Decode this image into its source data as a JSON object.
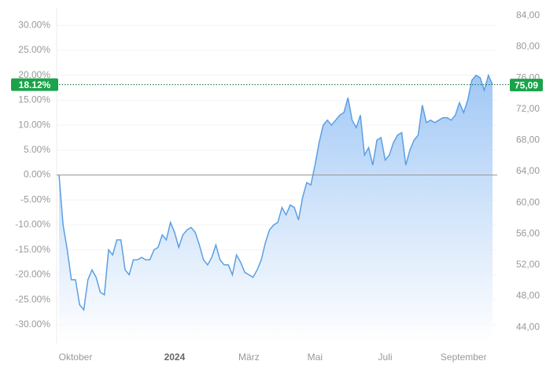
{
  "chart_data": {
    "type": "area",
    "categories": [
      null,
      null,
      null,
      null,
      "Oktober",
      null,
      null,
      null,
      null,
      null,
      null,
      null,
      null,
      null,
      null,
      null,
      null,
      null,
      null,
      null,
      null,
      null,
      null,
      null,
      null,
      null,
      null,
      null,
      "2024",
      null,
      null,
      null,
      null,
      null,
      null,
      null,
      null,
      null,
      null,
      null,
      null,
      null,
      null,
      null,
      null,
      null,
      "März",
      null,
      null,
      null,
      null,
      null,
      null,
      null,
      null,
      null,
      null,
      null,
      null,
      null,
      null,
      null,
      "Mai",
      null,
      null,
      null,
      null,
      null,
      null,
      null,
      null,
      null,
      null,
      null,
      null,
      null,
      null,
      null,
      null,
      "Juli",
      null,
      null,
      null,
      null,
      null,
      null,
      null,
      null,
      null,
      null,
      null,
      null,
      null,
      null,
      null,
      null,
      null,
      null,
      "September",
      null,
      null,
      null,
      null,
      null,
      null,
      null
    ],
    "values": [
      0,
      -10,
      -15,
      -21,
      -21,
      -26,
      -27,
      -21,
      -19,
      -20.5,
      -23.5,
      -24,
      -15,
      -16,
      -13,
      -13,
      -19,
      -20,
      -17,
      -17,
      -16.5,
      -17,
      -17,
      -15,
      -14.5,
      -12,
      -13,
      -9.5,
      -11.5,
      -14.5,
      -12,
      -11,
      -10.5,
      -11.5,
      -14,
      -17,
      -18,
      -16.5,
      -14,
      -17,
      -18,
      -18,
      -20,
      -16,
      -17.5,
      -19.5,
      -20,
      -20.5,
      -19,
      -17,
      -13.5,
      -11,
      -10,
      -9.5,
      -6.5,
      -8,
      -6,
      -6.5,
      -9,
      -4.5,
      -1.5,
      -2,
      2,
      6.5,
      10,
      11,
      10,
      11,
      12,
      12.5,
      15.5,
      11,
      9.5,
      12,
      4,
      5.5,
      2,
      7,
      7.5,
      3,
      4,
      6.5,
      8,
      8.5,
      2,
      5,
      7,
      8,
      14,
      10.5,
      11,
      10.5,
      11,
      11.5,
      11.5,
      11,
      12,
      14.5,
      12.5,
      15,
      19,
      20,
      19.5,
      17,
      20,
      18.12
    ],
    "color": "#5b9fe3",
    "ylim": [
      -33.8,
      33.5
    ],
    "yticks": [
      {
        "value": 30,
        "label": "30.00%"
      },
      {
        "value": 25,
        "label": "25.00%"
      },
      {
        "value": 20,
        "label": "20.00%"
      },
      {
        "value": 15,
        "label": "15.00%"
      },
      {
        "value": 10,
        "label": "10.00%"
      },
      {
        "value": 5,
        "label": "5.00%"
      },
      {
        "value": 0,
        "label": "0.00%"
      },
      {
        "value": -5,
        "label": "-5.00%"
      },
      {
        "value": -10,
        "label": "-10.00%"
      },
      {
        "value": -15,
        "label": "-15.00%"
      },
      {
        "value": -20,
        "label": "-20.00%"
      },
      {
        "value": -25,
        "label": "-25.00%"
      },
      {
        "value": -30,
        "label": "-30.00%"
      }
    ],
    "y2lim": [
      41.9,
      85.0
    ],
    "y2ticks": [
      {
        "value": 84,
        "label": "84,00"
      },
      {
        "value": 80,
        "label": "80,00"
      },
      {
        "value": 76,
        "label": "76,00"
      },
      {
        "value": 72,
        "label": "72,00"
      },
      {
        "value": 68,
        "label": "68,00"
      },
      {
        "value": 64,
        "label": "64,00"
      },
      {
        "value": 60,
        "label": "60,00"
      },
      {
        "value": 56,
        "label": "56,00"
      },
      {
        "value": 52,
        "label": "52,00"
      },
      {
        "value": 48,
        "label": "48,00"
      },
      {
        "value": 44,
        "label": "44,00"
      }
    ],
    "grid": true,
    "current": {
      "percent": {
        "value": 18.12,
        "label": "18.12%"
      },
      "price": {
        "value": 75.09,
        "label": "75,09"
      }
    }
  }
}
